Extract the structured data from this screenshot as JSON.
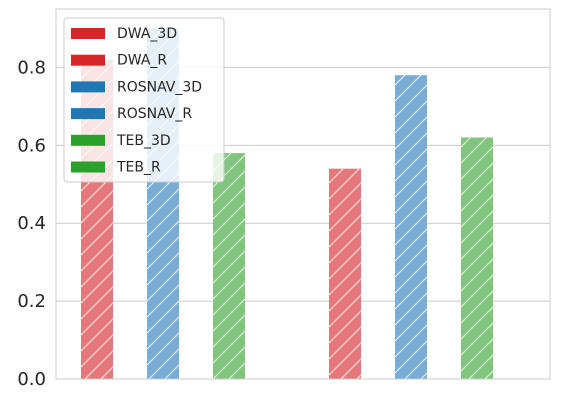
{
  "chart_data": {
    "type": "bar",
    "title": "",
    "xlabel": "",
    "ylabel": "",
    "ylim": [
      0,
      0.95
    ],
    "yticks": [
      0.0,
      0.2,
      0.4,
      0.6,
      0.8
    ],
    "ytick_labels": [
      "0.0",
      "0.2",
      "0.4",
      "0.6",
      "0.8"
    ],
    "grid": true,
    "legend_placement": "top-left",
    "groups": 2,
    "series": [
      {
        "name": "DWA_3D",
        "color": "#e5787b",
        "legend_color": "#d62728",
        "values": [
          0.82
        ]
      },
      {
        "name": "ROSNAV_3D",
        "color": "#7aadd6",
        "legend_color": "#1f77b4",
        "values": [
          0.9
        ]
      },
      {
        "name": "TEB_3D",
        "color": "#82c57e",
        "legend_color": "#2ca02c",
        "values": [
          0.58
        ]
      },
      {
        "name": "DWA_R",
        "color": "#e5787b",
        "legend_color": "#d62728",
        "values": [
          0.54
        ]
      },
      {
        "name": "ROSNAV_R",
        "color": "#7aadd6",
        "legend_color": "#1f77b4",
        "values": [
          0.78
        ]
      },
      {
        "name": "TEB_R",
        "color": "#82c57e",
        "legend_color": "#2ca02c",
        "values": [
          0.62
        ]
      }
    ],
    "legend": [
      "DWA_3D",
      "DWA_R",
      "ROSNAV_3D",
      "ROSNAV_R",
      "TEB_3D",
      "TEB_R"
    ]
  }
}
